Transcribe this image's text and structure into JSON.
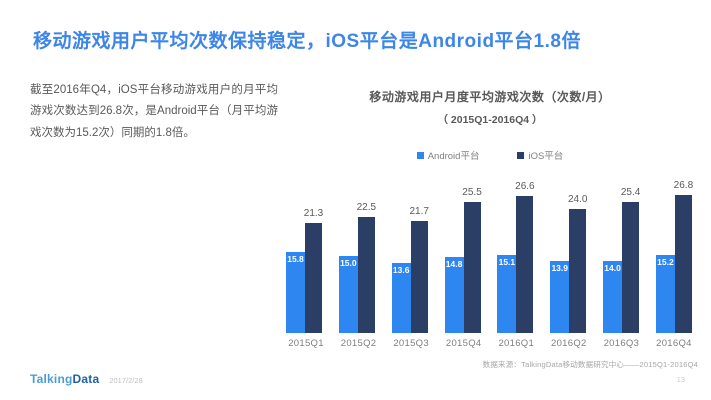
{
  "header": {
    "title": "移动游戏用户平均次数保持稳定，iOS平台是Android平台1.8倍"
  },
  "summary": {
    "text": "截至2016年Q4，iOS平台移动游戏用户的月平均游戏次数达到26.8次，是Android平台（月平均游戏次数为15.2次）同期的1.8倍。"
  },
  "chart": {
    "title": "移动游戏用户月度平均游戏次数（次数/月）",
    "subtitle": "（ 2015Q1-2016Q4 ）"
  },
  "chart_data": {
    "type": "bar",
    "title": "移动游戏用户月度平均游戏次数（次数/月）",
    "subtitle": "（ 2015Q1-2016Q4 ）",
    "categories": [
      "2015Q1",
      "2015Q2",
      "2015Q3",
      "2015Q4",
      "2016Q1",
      "2016Q2",
      "2016Q3",
      "2016Q4"
    ],
    "series": [
      {
        "name": "Android平台",
        "color": "#2e86f0",
        "values": [
          15.8,
          15.0,
          13.6,
          14.8,
          15.1,
          13.9,
          14.0,
          15.2
        ]
      },
      {
        "name": "iOS平台",
        "color": "#2b3f66",
        "values": [
          21.3,
          22.5,
          21.7,
          25.5,
          26.6,
          24.0,
          25.4,
          26.8
        ]
      }
    ],
    "legend_position": "top",
    "ylim": [
      0,
      28
    ],
    "grid": false,
    "value_label_decimals": 1
  },
  "footer": {
    "source": "数据来源：TalkingData移动数据研究中心——2015Q1-2016Q4",
    "logo_talking": "Talking",
    "logo_data": "Data",
    "date": "2017/2/28",
    "page": "13"
  },
  "colors": {
    "title_accent": "#3d86e8",
    "android_bar": "#2e86f0",
    "ios_bar": "#2b3f66"
  }
}
